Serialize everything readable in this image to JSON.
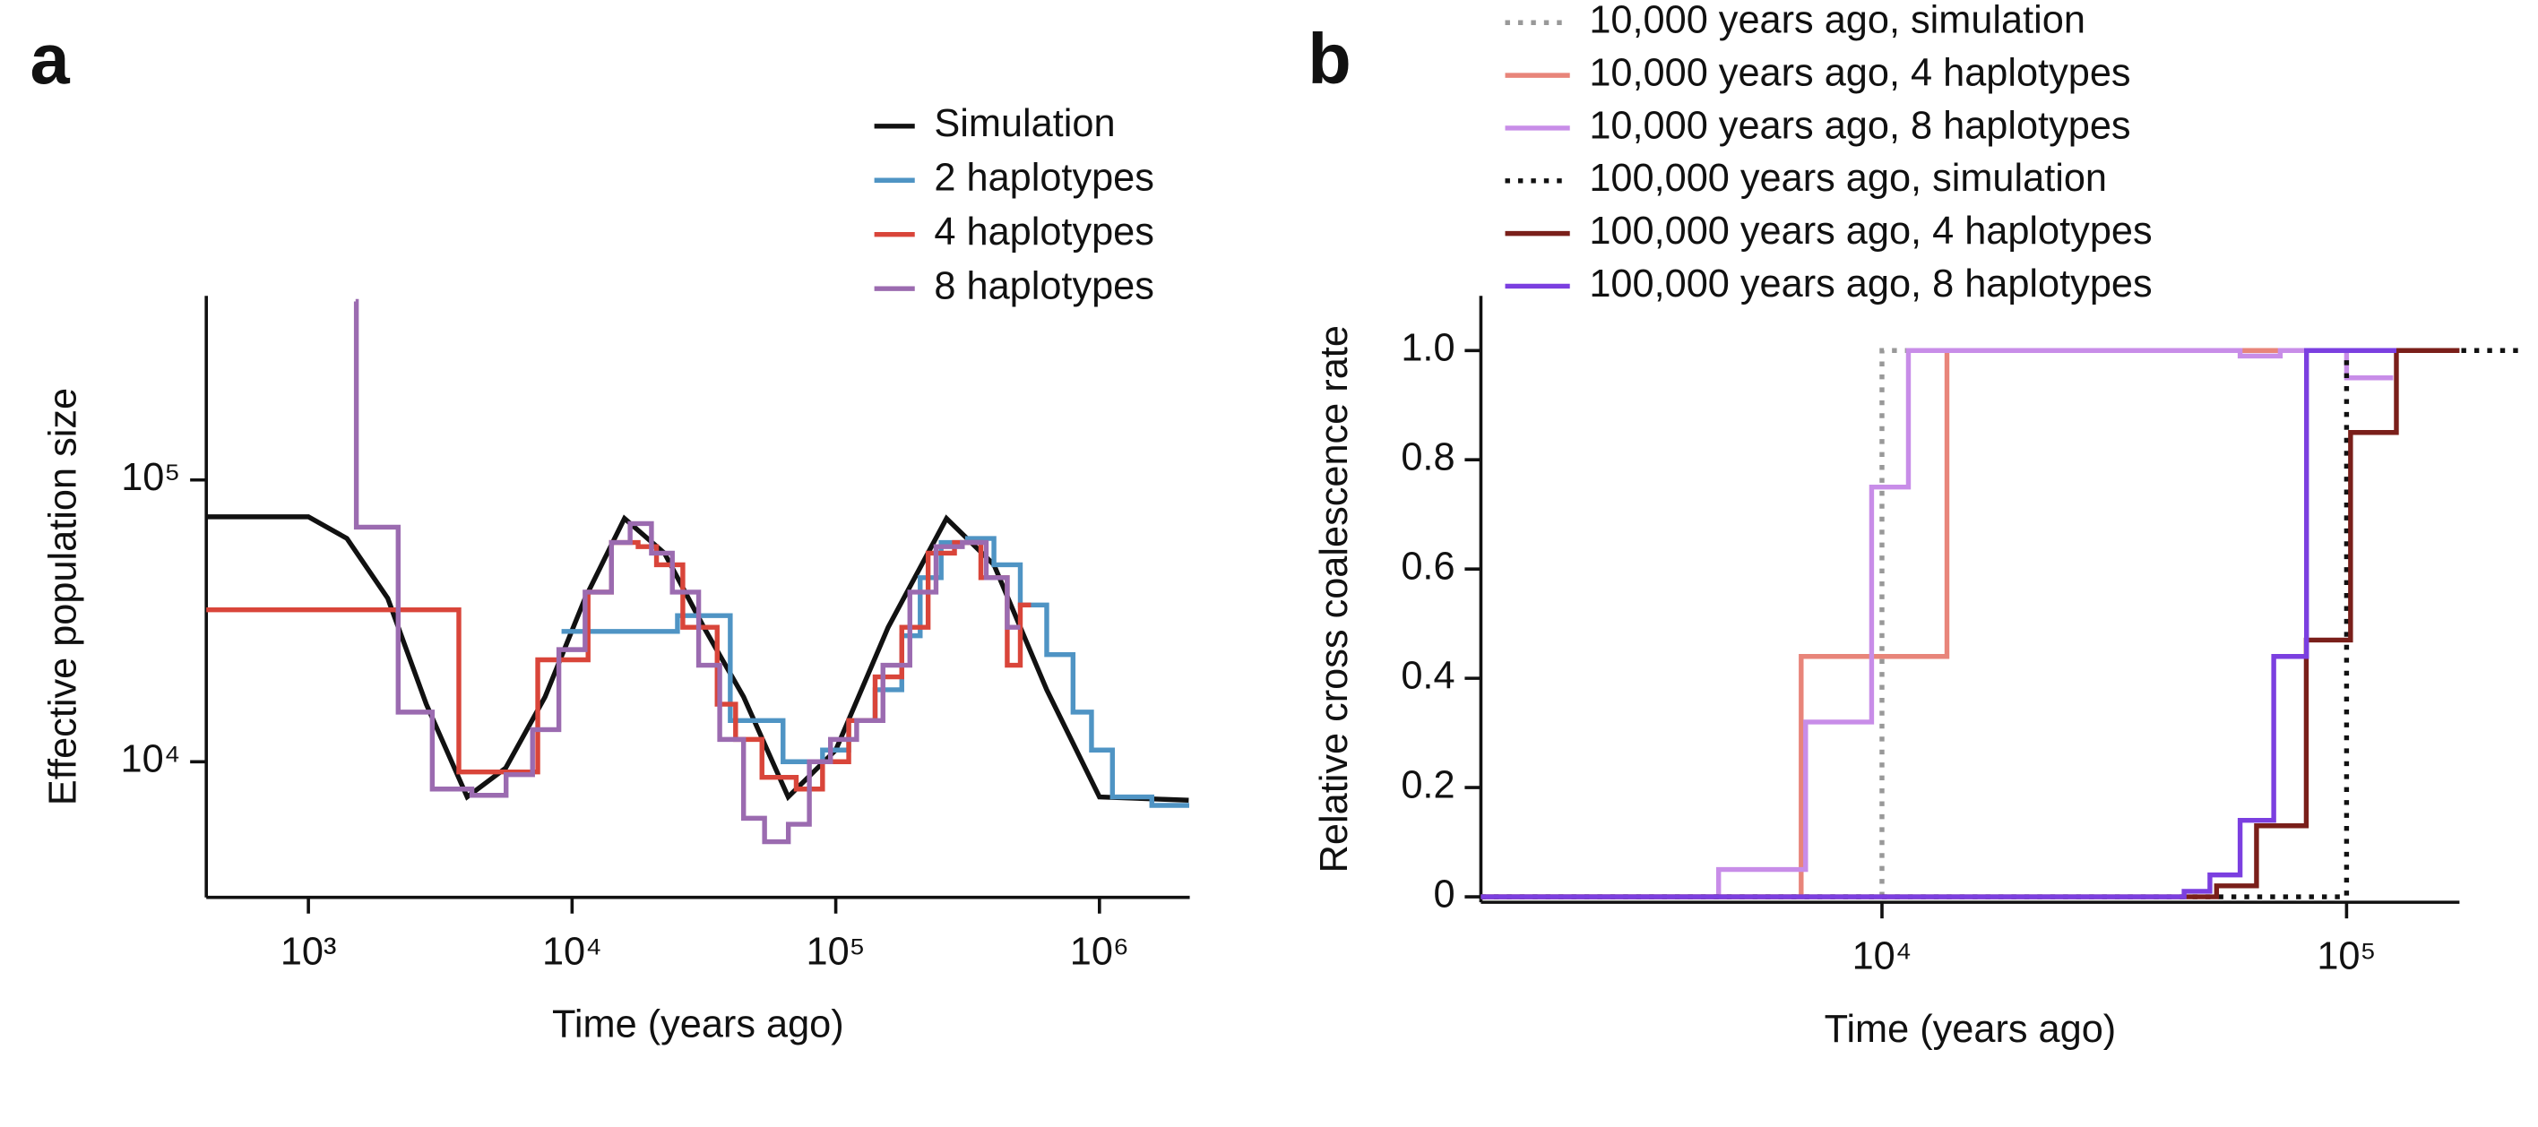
{
  "chart_data": [
    {
      "type": "line",
      "label": "a",
      "step": true,
      "xscale": "log",
      "yscale": "log",
      "xlabel": "Time (years ago)",
      "ylabel": "Effective population size",
      "xlim": [
        410,
        2200000
      ],
      "ylim": [
        3300,
        450000
      ],
      "xticks": [
        {
          "value": 1000,
          "label": "10³"
        },
        {
          "value": 10000,
          "label": "10⁴"
        },
        {
          "value": 100000,
          "label": "10⁵"
        },
        {
          "value": 1000000,
          "label": "10⁶"
        }
      ],
      "yticks": [
        {
          "value": 10000,
          "label": "10⁴"
        },
        {
          "value": 100000,
          "label": "10⁵"
        }
      ],
      "series": [
        {
          "name": "Simulation",
          "color": "#111111",
          "step": false,
          "x": [
            410,
            1000,
            1400,
            2000,
            2800,
            4000,
            5600,
            7900,
            11200,
            15800,
            22400,
            31600,
            44700,
            66000,
            100000,
            158000,
            263000,
            398000,
            631000,
            1000000,
            2180000
          ],
          "values": [
            74000,
            74000,
            62000,
            38000,
            16000,
            7500,
            9500,
            17000,
            38000,
            73000,
            55000,
            30000,
            17000,
            7500,
            11000,
            30000,
            73000,
            50000,
            18000,
            7500,
            7300
          ]
        },
        {
          "name": "2 haplotypes",
          "color": "#4f94c4",
          "x": [
            9120,
            17800,
            25100,
            39800,
            63100,
            89100,
            112000,
            141000,
            178000,
            209000,
            251000,
            316000,
            398000,
            501000,
            631000,
            794000,
            933000,
            1120000,
            1580000,
            2190000
          ],
          "values": [
            29000,
            29000,
            33000,
            14000,
            10000,
            11000,
            14000,
            18000,
            28000,
            45000,
            60000,
            62000,
            50000,
            36000,
            24000,
            15000,
            11000,
            7500,
            7000,
            7000
          ]
        },
        {
          "name": "4 haplotypes",
          "color": "#d9453a",
          "x": [
            410,
            3720,
            5620,
            7410,
            9330,
            11500,
            14100,
            17800,
            20900,
            26300,
            35500,
            41700,
            52500,
            70800,
            89100,
            112000,
            141000,
            178000,
            224000,
            282000,
            355000,
            447000,
            501000,
            550000
          ],
          "values": [
            34600,
            9200,
            9200,
            23000,
            23000,
            40000,
            60000,
            58000,
            50000,
            30000,
            16000,
            12000,
            8800,
            8000,
            10000,
            14000,
            20000,
            30000,
            55000,
            60000,
            45000,
            22000,
            36000,
            36000
          ]
        },
        {
          "name": "8 haplotypes",
          "color": "#9b6bb0",
          "x": [
            1510,
            1520,
            2190,
            2950,
            4170,
            5620,
            7080,
            8910,
            11200,
            14100,
            16600,
            20000,
            24000,
            30200,
            36300,
            44700,
            53700,
            66100,
            79400,
            95500,
            120000,
            151000,
            191000,
            240000,
            302000,
            372000,
            447000,
            501000
          ],
          "values": [
            430000,
            68000,
            15000,
            8000,
            7600,
            9000,
            13000,
            25000,
            40000,
            60000,
            70000,
            55000,
            40000,
            22000,
            12000,
            6300,
            5200,
            6000,
            10000,
            12000,
            14000,
            22000,
            40000,
            58000,
            60000,
            45000,
            30000,
            30000
          ]
        }
      ]
    },
    {
      "type": "line",
      "label": "b",
      "step": true,
      "xscale": "log",
      "yscale": "linear",
      "xlabel": "Time (years ago)",
      "ylabel": "Relative cross coalescence rate",
      "xlim": [
        1370,
        175000
      ],
      "ylim": [
        -0.01,
        1.1
      ],
      "xticks": [
        {
          "value": 10000,
          "label": "10⁴"
        },
        {
          "value": 100000,
          "label": "10⁵"
        }
      ],
      "yticks": [
        0,
        0.2,
        0.4,
        0.6,
        0.8,
        {
          "value": 1,
          "label": "1.0"
        }
      ],
      "series": [
        {
          "name": "10,000 years ago, simulation",
          "color": "#999999",
          "dash": "dotted",
          "x": [
            1370,
            10000,
            14000
          ],
          "values": [
            0,
            1,
            1
          ]
        },
        {
          "name": "10,000 years ago, 4 haplotypes",
          "color": "#e8857a",
          "x": [
            1370,
            6700,
            13800,
            130000
          ],
          "values": [
            0,
            0.44,
            1,
            1
          ]
        },
        {
          "name": "10,000 years ago, 8 haplotypes",
          "color": "#c88de8",
          "x": [
            1370,
            4450,
            6850,
            9500,
            11400,
            59000,
            72000,
            100000,
            126000
          ],
          "values": [
            0,
            0.05,
            0.32,
            0.75,
            1,
            0.99,
            1,
            0.95,
            0.95
          ]
        },
        {
          "name": "100,000 years ago, simulation",
          "color": "#111111",
          "dash": "dotted",
          "x": [
            1370,
            100000,
            240000
          ],
          "values": [
            0,
            1,
            1
          ]
        },
        {
          "name": "100,000 years ago, 4 haplotypes",
          "color": "#7a1f1a",
          "x": [
            1370,
            52500,
            64000,
            81900,
            102000,
            128000,
            175000
          ],
          "values": [
            0,
            0.02,
            0.13,
            0.47,
            0.85,
            1,
            1
          ]
        },
        {
          "name": "100,000 years ago, 8 haplotypes",
          "color": "#7b3fe0",
          "x": [
            1370,
            44700,
            50800,
            59000,
            69700,
            82000,
            128000
          ],
          "values": [
            0,
            0.01,
            0.04,
            0.14,
            0.44,
            1,
            1
          ]
        }
      ]
    }
  ]
}
